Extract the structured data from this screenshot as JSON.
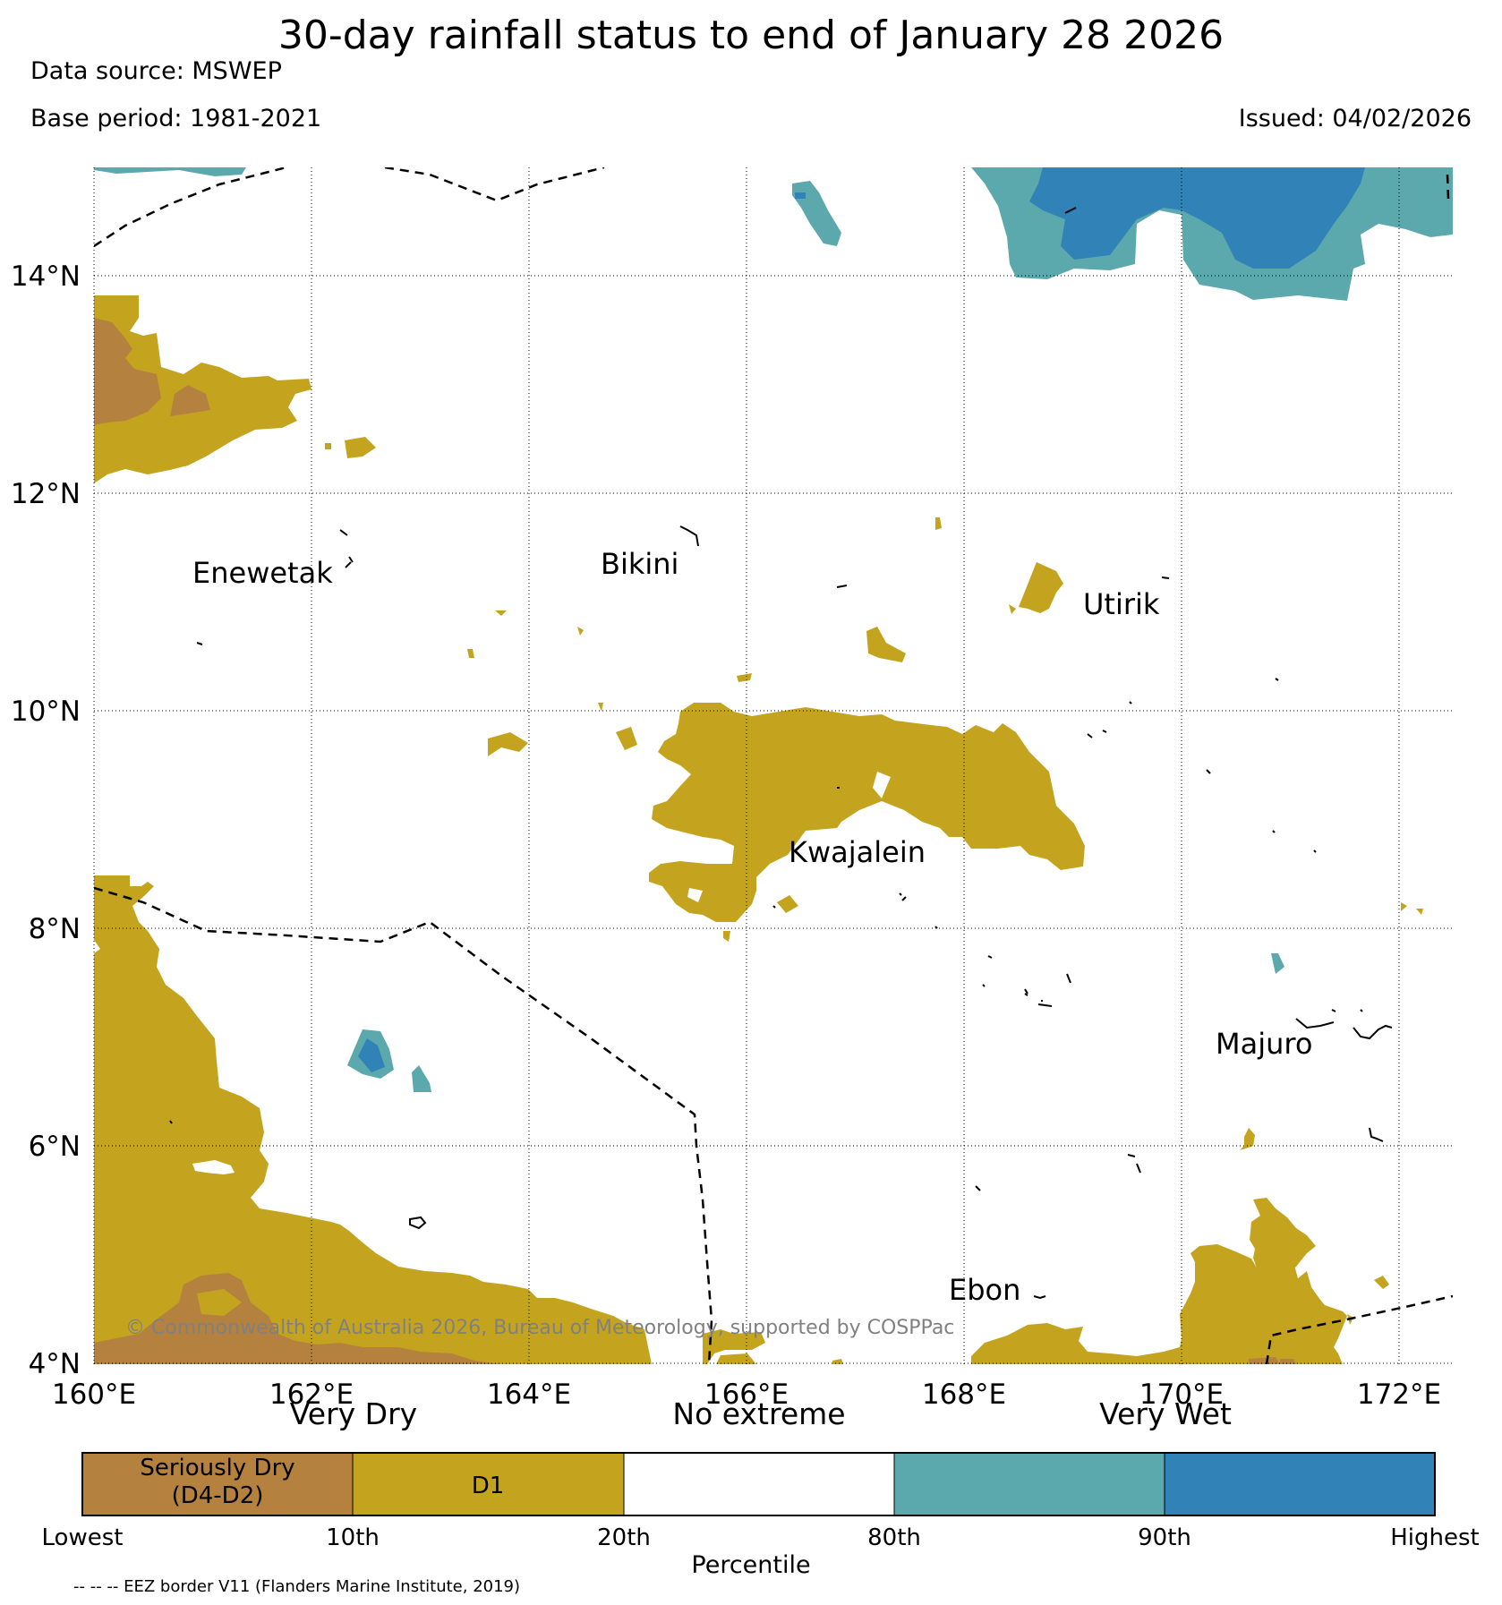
{
  "title": "30-day rainfall status to end of January 28 2026",
  "data_source": "Data source: MSWEP",
  "base_period": "Base period: 1981-2021",
  "issued": "Issued: 04/02/2026",
  "latitude_labels": [
    "14°N",
    "12°N",
    "10°N",
    "8°N",
    "6°N",
    "4°N"
  ],
  "longitude_labels": [
    "160°E",
    "162°E",
    "164°E",
    "166°E",
    "168°E",
    "170°E",
    "172°E"
  ],
  "places": {
    "enewetak": "Enewetak",
    "bikini": "Bikini",
    "utirik": "Utirik",
    "kwajalein": "Kwajalein",
    "majuro": "Majuro",
    "ebon": "Ebon"
  },
  "copyright": "© Commonwealth of Australia 2026, Bureau of Meteorology, supported by COSPPac",
  "legend": {
    "headers": {
      "very_dry": "Very Dry",
      "no_extreme": "No extreme",
      "very_wet": "Very Wet"
    },
    "seriously_dry": {
      "line1": "Seriously Dry",
      "line2": "(D4-D2)"
    },
    "d1": "D1",
    "ticks": [
      "Lowest",
      "10th",
      "20th",
      "80th",
      "90th",
      "Highest"
    ],
    "axis_label": "Percentile",
    "colors": {
      "seriously_dry": "#b5813e",
      "d1": "#c4a41f",
      "no_extreme": "#ffffff",
      "wet": "#5ba8ad",
      "very_wet": "#3182b6"
    }
  },
  "eez_note": "-- -- -- EEZ border V11 (Flanders Marine Institute, 2019)"
}
